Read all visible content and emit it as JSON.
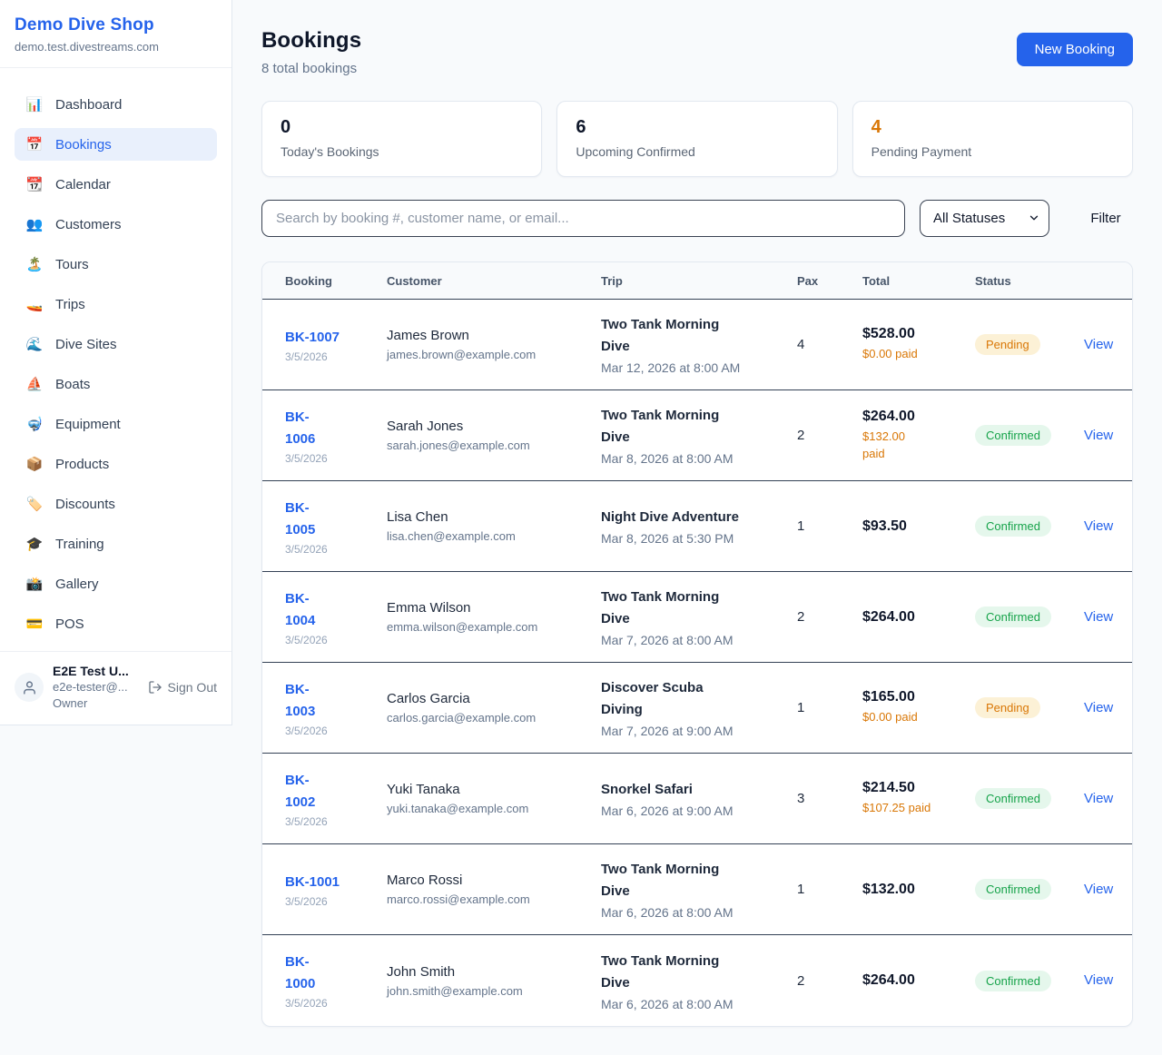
{
  "colors": {
    "accent": "#2563eb",
    "orange": "#d97706",
    "green": "#16a34a",
    "pending_bg": "#fcf1d6",
    "confirmed_bg": "#e5f7ec"
  },
  "brand": {
    "name": "Demo Dive Shop",
    "domain": "demo.test.divestreams.com"
  },
  "sidebar": {
    "items": [
      {
        "label": "Dashboard",
        "icon": "📊",
        "icon_name": "bar-chart-icon",
        "active": false
      },
      {
        "label": "Bookings",
        "icon": "📅",
        "icon_name": "calendar-date-icon",
        "active": true
      },
      {
        "label": "Calendar",
        "icon": "📆",
        "icon_name": "calendar-icon",
        "active": false
      },
      {
        "label": "Customers",
        "icon": "👥",
        "icon_name": "people-icon",
        "active": false
      },
      {
        "label": "Tours",
        "icon": "🏝️",
        "icon_name": "island-icon",
        "active": false
      },
      {
        "label": "Trips",
        "icon": "🚤",
        "icon_name": "speedboat-icon",
        "active": false
      },
      {
        "label": "Dive Sites",
        "icon": "🌊",
        "icon_name": "wave-icon",
        "active": false
      },
      {
        "label": "Boats",
        "icon": "⛵",
        "icon_name": "sailboat-icon",
        "active": false
      },
      {
        "label": "Equipment",
        "icon": "🤿",
        "icon_name": "diving-mask-icon",
        "active": false
      },
      {
        "label": "Products",
        "icon": "📦",
        "icon_name": "package-icon",
        "active": false
      },
      {
        "label": "Discounts",
        "icon": "🏷️",
        "icon_name": "tag-icon",
        "active": false
      },
      {
        "label": "Training",
        "icon": "🎓",
        "icon_name": "graduation-cap-icon",
        "active": false
      },
      {
        "label": "Gallery",
        "icon": "📸",
        "icon_name": "camera-icon",
        "active": false
      },
      {
        "label": "POS",
        "icon": "💳",
        "icon_name": "credit-card-icon",
        "active": false
      }
    ],
    "user": {
      "name": "E2E Test U...",
      "email": "e2e-tester@...",
      "role": "Owner",
      "sign_out_label": "Sign Out"
    }
  },
  "header": {
    "title": "Bookings",
    "subtitle": "8 total bookings",
    "new_booking_label": "New Booking"
  },
  "stats": {
    "cards": [
      {
        "value": "0",
        "label": "Today's Bookings",
        "accent": "dark"
      },
      {
        "value": "6",
        "label": "Upcoming Confirmed",
        "accent": "dark"
      },
      {
        "value": "4",
        "label": "Pending Payment",
        "accent": "orange"
      }
    ]
  },
  "filters": {
    "search_placeholder": "Search by booking #, customer name, or email...",
    "status_selected": "All Statuses",
    "filter_label": "Filter"
  },
  "table": {
    "columns": [
      "Booking",
      "Customer",
      "Trip",
      "Pax",
      "Total",
      "Status"
    ],
    "view_label": "View",
    "rows": [
      {
        "booking_no": "BK-1007",
        "date": "3/5/2026",
        "customer": "James Brown",
        "email": "james.brown@example.com",
        "trip": "Two Tank Morning\nDive",
        "trip_datetime": "Mar 12, 2026 at 8:00 AM",
        "pax": "4",
        "total": "$528.00",
        "paid": "$0.00 paid",
        "status": "Pending"
      },
      {
        "booking_no": "BK-\n1006",
        "date": "3/5/2026",
        "customer": "Sarah Jones",
        "email": "sarah.jones@example.com",
        "trip": "Two Tank Morning\nDive",
        "trip_datetime": "Mar 8, 2026 at 8:00 AM",
        "pax": "2",
        "total": "$264.00",
        "paid": "$132.00\npaid",
        "status": "Confirmed"
      },
      {
        "booking_no": "BK-\n1005",
        "date": "3/5/2026",
        "customer": "Lisa Chen",
        "email": "lisa.chen@example.com",
        "trip": "Night Dive Adventure",
        "trip_datetime": "Mar 8, 2026 at 5:30 PM",
        "pax": "1",
        "total": "$93.50",
        "paid": "",
        "status": "Confirmed"
      },
      {
        "booking_no": "BK-\n1004",
        "date": "3/5/2026",
        "customer": "Emma Wilson",
        "email": "emma.wilson@example.com",
        "trip": "Two Tank Morning\nDive",
        "trip_datetime": "Mar 7, 2026 at 8:00 AM",
        "pax": "2",
        "total": "$264.00",
        "paid": "",
        "status": "Confirmed"
      },
      {
        "booking_no": "BK-\n1003",
        "date": "3/5/2026",
        "customer": "Carlos Garcia",
        "email": "carlos.garcia@example.com",
        "trip": "Discover Scuba\nDiving",
        "trip_datetime": "Mar 7, 2026 at 9:00 AM",
        "pax": "1",
        "total": "$165.00",
        "paid": "$0.00 paid",
        "status": "Pending"
      },
      {
        "booking_no": "BK-\n1002",
        "date": "3/5/2026",
        "customer": "Yuki Tanaka",
        "email": "yuki.tanaka@example.com",
        "trip": "Snorkel Safari",
        "trip_datetime": "Mar 6, 2026 at 9:00 AM",
        "pax": "3",
        "total": "$214.50",
        "paid": "$107.25 paid",
        "status": "Confirmed"
      },
      {
        "booking_no": "BK-1001",
        "date": "3/5/2026",
        "customer": "Marco Rossi",
        "email": "marco.rossi@example.com",
        "trip": "Two Tank Morning\nDive",
        "trip_datetime": "Mar 6, 2026 at 8:00 AM",
        "pax": "1",
        "total": "$132.00",
        "paid": "",
        "status": "Confirmed"
      },
      {
        "booking_no": "BK-\n1000",
        "date": "3/5/2026",
        "customer": "John Smith",
        "email": "john.smith@example.com",
        "trip": "Two Tank Morning\nDive",
        "trip_datetime": "Mar 6, 2026 at 8:00 AM",
        "pax": "2",
        "total": "$264.00",
        "paid": "",
        "status": "Confirmed"
      }
    ]
  }
}
